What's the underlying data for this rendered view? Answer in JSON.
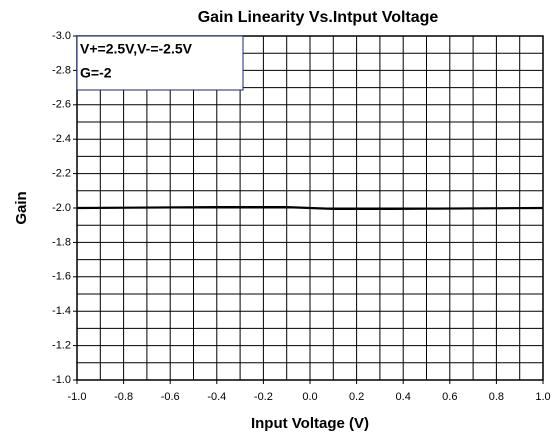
{
  "chart_data": {
    "type": "line",
    "title": "Gain Linearity  Vs.Intput Voltage",
    "xlabel": "Input Voltage (V)",
    "ylabel": "Gain",
    "annotations": [
      "V+=2.5V,V-=-2.5V",
      "G=-2"
    ],
    "x": [
      -1.0,
      -0.4,
      -0.1,
      0.0,
      0.1,
      0.35,
      1.0
    ],
    "series": [
      {
        "name": "Gain",
        "color": "#000000",
        "values": [
          -2.0,
          -2.005,
          -2.005,
          -2.0,
          -1.995,
          -1.995,
          -2.0
        ]
      }
    ],
    "xlim": [
      -1.0,
      1.0
    ],
    "xticks": [
      {
        "value": -1.0,
        "label": "-1.0"
      },
      -0.8,
      -0.6,
      -0.4,
      -0.2,
      {
        "value": 0.0,
        "label": "0.0"
      },
      0.2,
      0.4,
      0.6,
      0.8,
      {
        "value": 1.0,
        "label": "1.0"
      }
    ],
    "ylim": [
      -1.0,
      -3.0
    ],
    "yticks": [
      {
        "value": -1.0,
        "label": "-1.0"
      },
      -1.2,
      -1.4,
      -1.6,
      -1.8,
      {
        "value": -2.0,
        "label": "-2.0"
      },
      -2.2,
      -2.4,
      -2.6,
      -2.8,
      {
        "value": -3.0,
        "label": "-3.0"
      }
    ],
    "grid": true,
    "minor_grid": 0.1
  }
}
